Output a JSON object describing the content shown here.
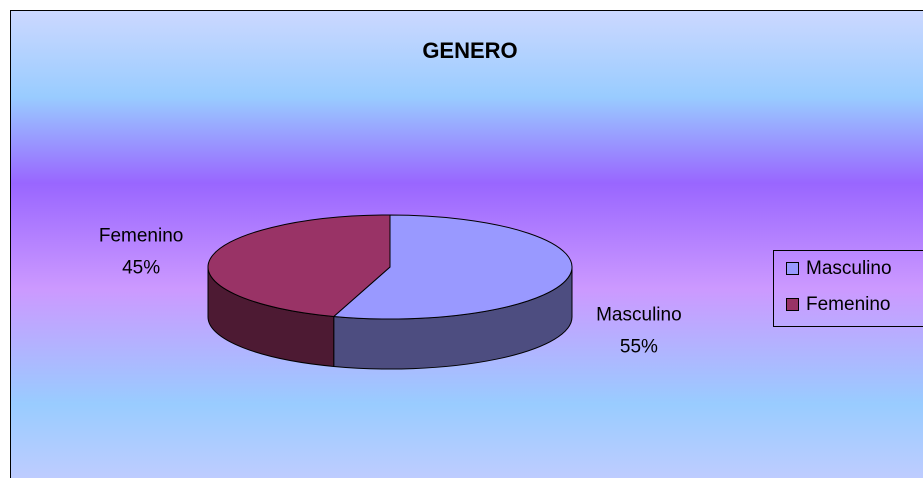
{
  "chart_data": {
    "type": "pie",
    "title": "GENERO",
    "categories": [
      "Masculino",
      "Femenino"
    ],
    "values": [
      55,
      45
    ],
    "value_labels": [
      "55%",
      "45%"
    ],
    "colors": [
      "#9999ff",
      "#993366"
    ],
    "legend": "right"
  }
}
